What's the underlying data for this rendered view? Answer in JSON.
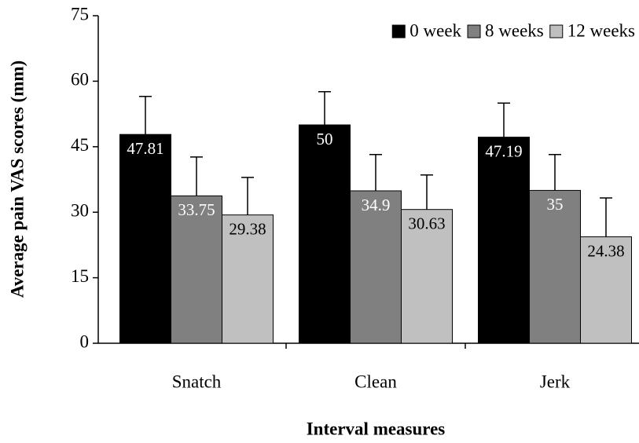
{
  "chart_data": {
    "type": "bar",
    "y_label": "Average pain VAS scores (mm)",
    "x_label": "Interval measures",
    "categories": [
      "Snatch",
      "Clean",
      "Jerk"
    ],
    "series": [
      {
        "name": "0 week",
        "color": "#000000",
        "values": [
          47.81,
          50,
          47.19
        ],
        "errors": [
          8.7,
          7.6,
          7.8
        ]
      },
      {
        "name": "8 weeks",
        "color": "#808080",
        "values": [
          33.75,
          34.9,
          35
        ],
        "errors": [
          8.9,
          8.3,
          8.2
        ]
      },
      {
        "name": "12 weeks",
        "color": "#c0c0c0",
        "values": [
          29.38,
          30.63,
          24.38
        ],
        "errors": [
          8.6,
          7.9,
          8.9
        ]
      }
    ],
    "ylim": [
      0,
      75
    ],
    "yticks": [
      0,
      15,
      30,
      45,
      60,
      75
    ],
    "legend": "top-right",
    "grid": false
  }
}
